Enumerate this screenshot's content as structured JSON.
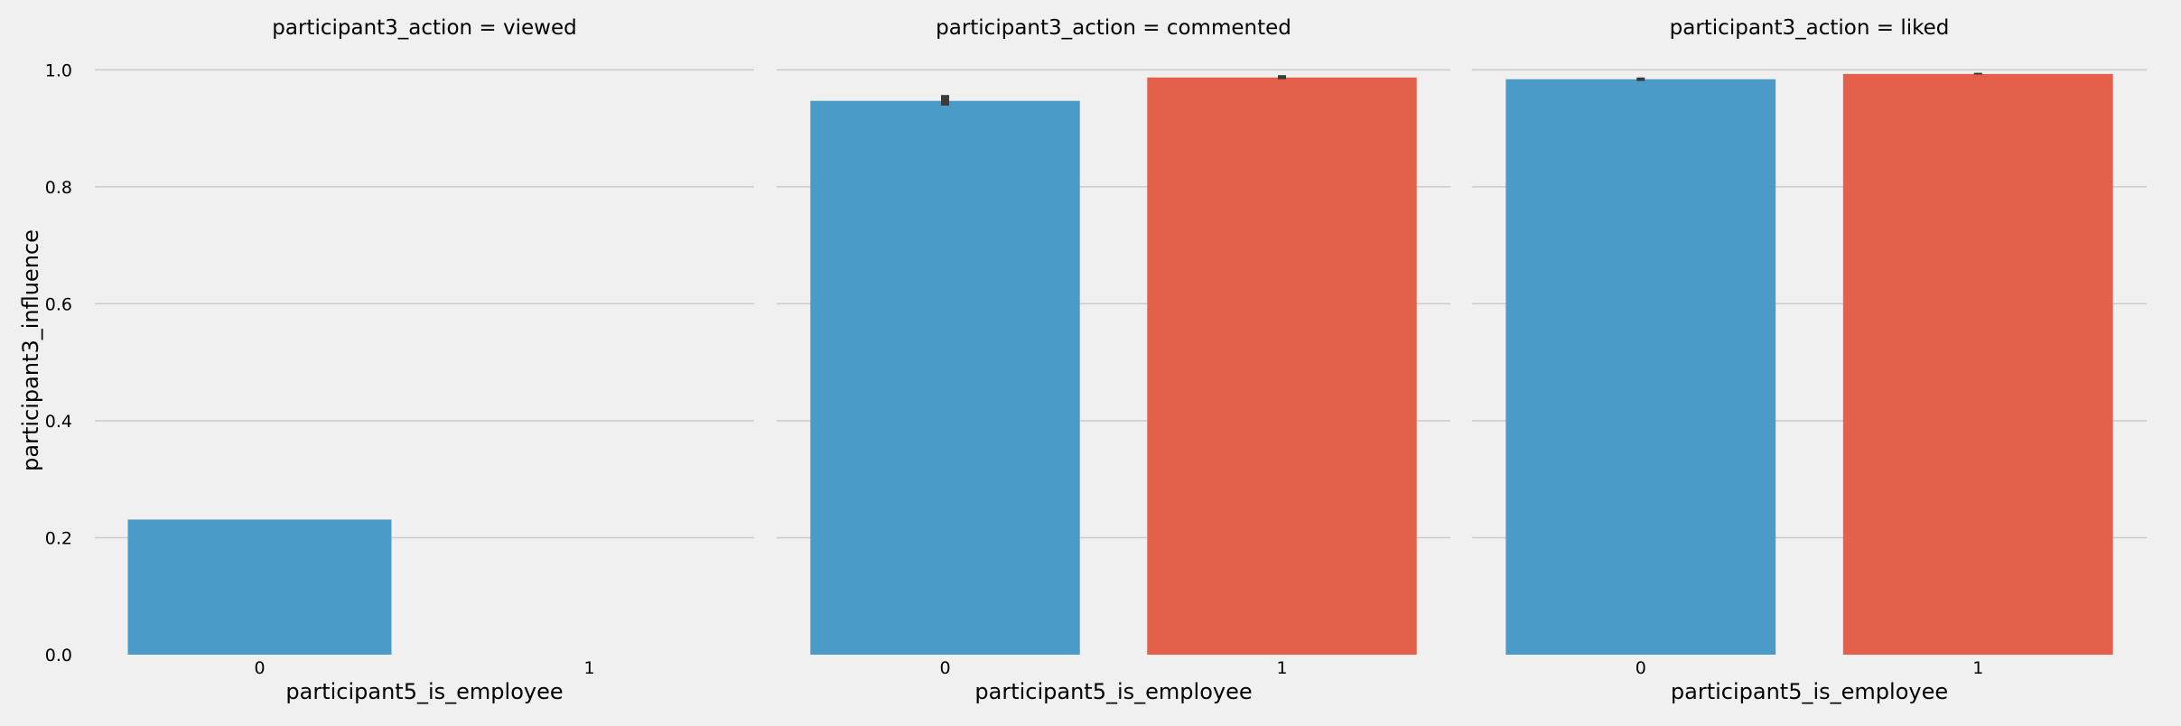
{
  "chart_data": {
    "type": "bar",
    "ylabel": "participant3_influence",
    "ylim": [
      0,
      1.05
    ],
    "yticks": [
      "0.0",
      "0.2",
      "0.4",
      "0.6",
      "0.8",
      "1.0"
    ],
    "grid": true,
    "colors": {
      "0": "#4a9bc7",
      "1": "#e4604a",
      "errorbar": "#3b3b3b",
      "grid": "#cbcbcb",
      "background": "#f0f0f0"
    },
    "panels": [
      {
        "title": "participant3_action = viewed",
        "xlabel": "participant5_is_employee",
        "categories": [
          "0",
          "1"
        ],
        "values": [
          0.231,
          null
        ],
        "ci": [
          null,
          null
        ]
      },
      {
        "title": "participant3_action = commented",
        "xlabel": "participant5_is_employee",
        "categories": [
          "0",
          "1"
        ],
        "values": [
          0.947,
          0.987
        ],
        "ci": [
          [
            0.939,
            0.957
          ],
          [
            0.984,
            0.991
          ]
        ]
      },
      {
        "title": "participant3_action = liked",
        "xlabel": "participant5_is_employee",
        "categories": [
          "0",
          "1"
        ],
        "values": [
          0.984,
          0.993
        ],
        "ci": [
          [
            0.981,
            0.987
          ],
          [
            0.992,
            0.995
          ]
        ]
      }
    ]
  }
}
